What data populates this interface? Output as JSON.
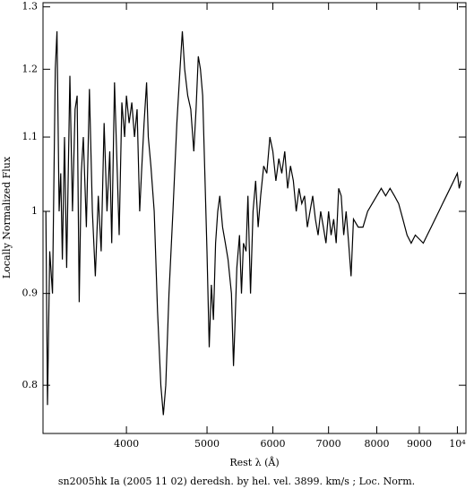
{
  "chart_data": {
    "type": "line",
    "caption": "sn2005hk Ia (2005 11 02) deredsh. by hel. vel.  3899. km/s ;  Loc. Norm.",
    "x_label": "Rest λ (Å)",
    "y_label": "Locally Normalized Flux",
    "xscale": "log",
    "yscale": "log",
    "xlim": [
      3175,
      10240
    ],
    "ylim": [
      0.752,
      1.307
    ],
    "xticks": [
      4000,
      5000,
      6000,
      7000,
      8000,
      9000,
      {
        "value": 10000,
        "label": "10⁴"
      }
    ],
    "yticks": [
      0.8,
      0.9,
      1,
      1.1,
      1.2,
      1.3
    ],
    "series": [
      {
        "name": "sn2005hk",
        "color": "#000000",
        "x": [
          3200,
          3215,
          3235,
          3260,
          3285,
          3300,
          3320,
          3335,
          3350,
          3370,
          3390,
          3420,
          3445,
          3470,
          3490,
          3510,
          3530,
          3550,
          3580,
          3610,
          3640,
          3670,
          3700,
          3730,
          3760,
          3790,
          3820,
          3840,
          3870,
          3900,
          3920,
          3950,
          3980,
          4000,
          4030,
          4060,
          4090,
          4120,
          4150,
          4170,
          4200,
          4230,
          4250,
          4280,
          4320,
          4360,
          4400,
          4430,
          4460,
          4500,
          4550,
          4600,
          4640,
          4670,
          4700,
          4740,
          4780,
          4820,
          4850,
          4880,
          4910,
          4940,
          4970,
          5000,
          5030,
          5060,
          5090,
          5120,
          5150,
          5180,
          5220,
          5260,
          5300,
          5350,
          5380,
          5400,
          5430,
          5470,
          5500,
          5530,
          5570,
          5600,
          5640,
          5680,
          5720,
          5760,
          5800,
          5850,
          5900,
          5950,
          6000,
          6050,
          6100,
          6150,
          6200,
          6250,
          6300,
          6350,
          6400,
          6450,
          6500,
          6550,
          6600,
          6650,
          6700,
          6750,
          6800,
          6850,
          6900,
          6950,
          7000,
          7050,
          7100,
          7150,
          7200,
          7250,
          7300,
          7350,
          7400,
          7450,
          7500,
          7600,
          7700,
          7800,
          7900,
          8000,
          8100,
          8200,
          8300,
          8400,
          8500,
          8600,
          8700,
          8800,
          8900,
          9000,
          9100,
          9200,
          9300,
          9400,
          9500,
          9600,
          9700,
          9800,
          9900,
          10000,
          10050,
          10100
        ],
        "values": [
          1.0,
          0.78,
          0.95,
          0.9,
          1.2,
          1.26,
          1.0,
          1.05,
          0.94,
          1.1,
          0.93,
          1.19,
          1.0,
          1.14,
          1.16,
          0.89,
          1.05,
          1.1,
          0.98,
          1.17,
          1.0,
          0.92,
          1.02,
          0.95,
          1.12,
          1.0,
          1.08,
          0.96,
          1.18,
          1.05,
          0.97,
          1.15,
          1.1,
          1.16,
          1.12,
          1.15,
          1.1,
          1.14,
          1.0,
          1.05,
          1.12,
          1.18,
          1.1,
          1.06,
          1.0,
          0.88,
          0.8,
          0.77,
          0.8,
          0.9,
          1.0,
          1.12,
          1.2,
          1.26,
          1.2,
          1.16,
          1.14,
          1.08,
          1.14,
          1.22,
          1.2,
          1.16,
          1.05,
          0.95,
          0.84,
          0.91,
          0.87,
          0.96,
          1.0,
          1.02,
          0.98,
          0.96,
          0.94,
          0.9,
          0.82,
          0.86,
          0.93,
          0.97,
          0.9,
          0.96,
          0.95,
          1.02,
          0.9,
          1.0,
          1.04,
          0.98,
          1.02,
          1.06,
          1.05,
          1.1,
          1.08,
          1.04,
          1.07,
          1.05,
          1.08,
          1.03,
          1.06,
          1.04,
          1.0,
          1.03,
          1.01,
          1.02,
          0.98,
          1.0,
          1.02,
          0.99,
          0.97,
          1.0,
          0.98,
          0.96,
          1.0,
          0.97,
          0.99,
          0.96,
          1.03,
          1.02,
          0.97,
          1.0,
          0.96,
          0.92,
          0.99,
          0.98,
          0.98,
          1.0,
          1.01,
          1.02,
          1.03,
          1.02,
          1.03,
          1.02,
          1.01,
          0.99,
          0.97,
          0.96,
          0.97,
          0.965,
          0.96,
          0.97,
          0.98,
          0.99,
          1.0,
          1.01,
          1.02,
          1.03,
          1.04,
          1.05,
          1.03,
          1.04
        ]
      }
    ]
  }
}
